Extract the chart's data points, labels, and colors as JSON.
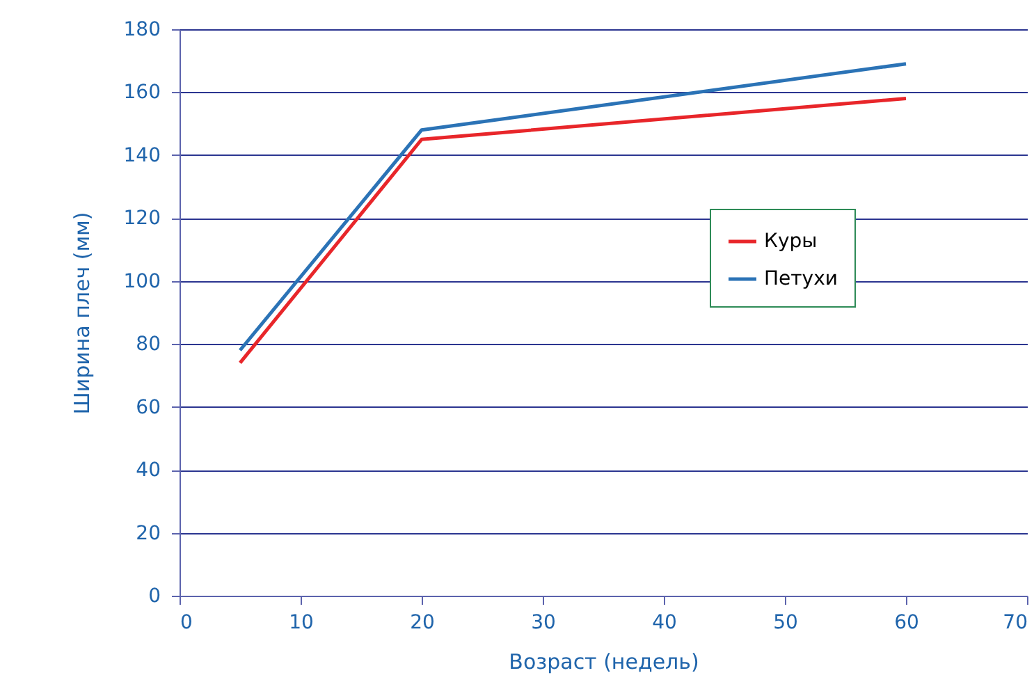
{
  "chart_data": {
    "type": "line",
    "xlabel": "Возраст (недель)",
    "ylabel": "Ширина плеч (мм)",
    "x": [
      5,
      20,
      60
    ],
    "series": [
      {
        "name": "Куры",
        "color": "#e8262a",
        "values": [
          74,
          145,
          158
        ]
      },
      {
        "name": "Петухи",
        "color": "#2b73b6",
        "values": [
          78,
          148,
          169
        ]
      }
    ],
    "xlim": [
      0,
      70
    ],
    "xticks": [
      0,
      10,
      20,
      30,
      40,
      50,
      60,
      70
    ],
    "ylim": [
      0,
      180
    ],
    "yticks": [
      0,
      20,
      40,
      60,
      80,
      100,
      120,
      140,
      160,
      180
    ],
    "grid": "y",
    "legend": "right",
    "marker": "none",
    "line_style": "solid"
  }
}
